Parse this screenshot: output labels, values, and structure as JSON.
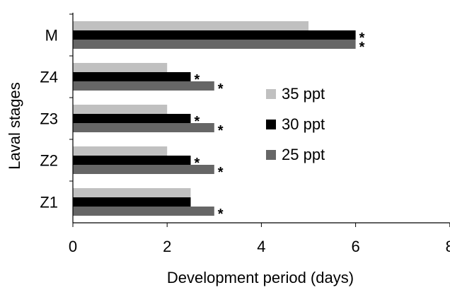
{
  "chart_data": {
    "type": "bar",
    "orientation": "horizontal",
    "title": "",
    "xlabel": "Development period (days)",
    "ylabel": "Laval stages",
    "categories": [
      "Z1",
      "Z2",
      "Z3",
      "Z4",
      "M"
    ],
    "xlim": [
      0,
      8
    ],
    "xticks": [
      0,
      2,
      4,
      6,
      8
    ],
    "grid": false,
    "legend_position": "center-right",
    "series": [
      {
        "name": "35 ppt",
        "color": "#c0c0c0",
        "values": [
          2.5,
          2,
          2,
          2,
          5
        ],
        "significant": [
          false,
          false,
          false,
          false,
          false
        ]
      },
      {
        "name": "30 ppt",
        "color": "#000000",
        "values": [
          2.5,
          2.5,
          2.5,
          2.5,
          6
        ],
        "significant": [
          false,
          true,
          true,
          true,
          true
        ]
      },
      {
        "name": "25 ppt",
        "color": "#666666",
        "values": [
          3,
          3,
          3,
          3,
          6
        ],
        "significant": [
          true,
          true,
          true,
          true,
          true
        ]
      }
    ],
    "annotation_marker": "*"
  }
}
